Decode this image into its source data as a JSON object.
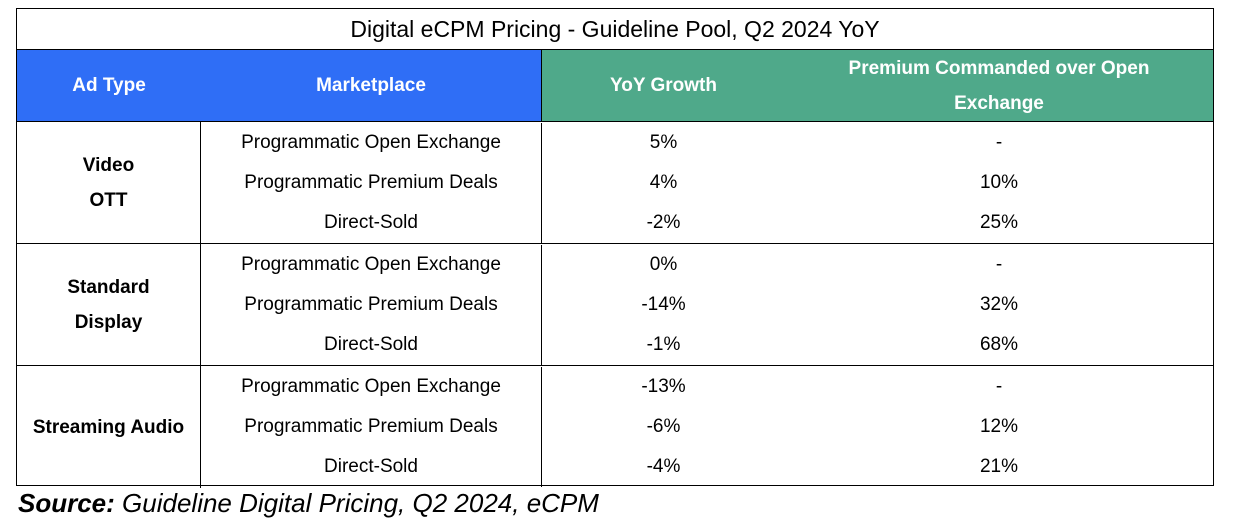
{
  "chart_data": {
    "type": "table",
    "title": "Digital eCPM Pricing - Guideline Pool, Q2 2024 YoY",
    "columns": [
      "Ad Type",
      "Marketplace",
      "YoY Growth",
      "Premium Commanded over Open Exchange"
    ],
    "header_lines": {
      "ad_type": [
        "Ad Type"
      ],
      "marketplace": [
        "Marketplace"
      ],
      "yoy": [
        "YoY Growth"
      ],
      "premium": [
        "Premium Commanded over Open",
        "Exchange"
      ]
    },
    "groups": [
      {
        "ad_type": "Video\nOTT",
        "rows": [
          {
            "marketplace": "Programmatic Open Exchange",
            "yoy": "5%",
            "premium": "-"
          },
          {
            "marketplace": "Programmatic Premium Deals",
            "yoy": "4%",
            "premium": "10%"
          },
          {
            "marketplace": "Direct-Sold",
            "yoy": "-2%",
            "premium": "25%"
          }
        ]
      },
      {
        "ad_type": "Standard\nDisplay",
        "rows": [
          {
            "marketplace": "Programmatic Open Exchange",
            "yoy": "0%",
            "premium": "-"
          },
          {
            "marketplace": "Programmatic Premium Deals",
            "yoy": "-14%",
            "premium": "32%"
          },
          {
            "marketplace": "Direct-Sold",
            "yoy": "-1%",
            "premium": "68%"
          }
        ]
      },
      {
        "ad_type": "Streaming Audio",
        "rows": [
          {
            "marketplace": "Programmatic Open Exchange",
            "yoy": "-13%",
            "premium": "-"
          },
          {
            "marketplace": "Programmatic Premium Deals",
            "yoy": "-6%",
            "premium": "12%"
          },
          {
            "marketplace": "Direct-Sold",
            "yoy": "-4%",
            "premium": "21%"
          }
        ]
      }
    ],
    "colors": {
      "header_blue": "#2f6ef6",
      "header_green": "#4fa98a"
    }
  },
  "source": {
    "label": "Source:",
    "text": " Guideline Digital Pricing, Q2 2024, eCPM"
  }
}
